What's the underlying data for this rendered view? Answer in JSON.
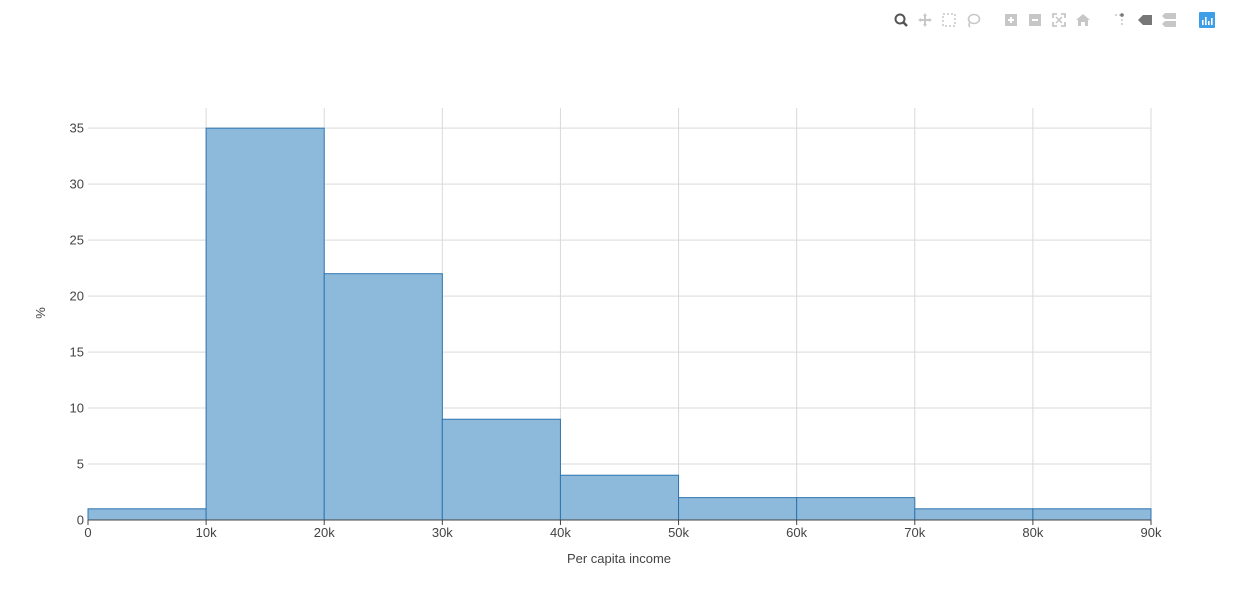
{
  "modebar": {
    "groups": [
      [
        "zoom-icon",
        "pan-icon",
        "box-select-icon",
        "lasso-select-icon"
      ],
      [
        "zoom-in-icon",
        "zoom-out-icon",
        "autoscale-icon",
        "reset-axes-icon"
      ],
      [
        "spike-lines-icon",
        "hover-closest-icon",
        "hover-compare-icon"
      ],
      [
        "plotly-logo-icon"
      ]
    ],
    "active": "zoom-icon",
    "logo_color": "#3f9ee8"
  },
  "chart_data": {
    "type": "histogram",
    "bins": [
      {
        "start": 0,
        "end": 10000,
        "value": 1
      },
      {
        "start": 10000,
        "end": 20000,
        "value": 35
      },
      {
        "start": 20000,
        "end": 30000,
        "value": 22
      },
      {
        "start": 30000,
        "end": 40000,
        "value": 9
      },
      {
        "start": 40000,
        "end": 50000,
        "value": 4
      },
      {
        "start": 50000,
        "end": 60000,
        "value": 2
      },
      {
        "start": 60000,
        "end": 70000,
        "value": 2
      },
      {
        "start": 70000,
        "end": 80000,
        "value": 1
      },
      {
        "start": 80000,
        "end": 90000,
        "value": 1
      }
    ],
    "xlabel": "Per capita income",
    "ylabel": "%",
    "xlim": [
      0,
      90000
    ],
    "ylim": [
      0,
      36.8
    ],
    "xticks": [
      0,
      10000,
      20000,
      30000,
      40000,
      50000,
      60000,
      70000,
      80000,
      90000
    ],
    "xtick_labels": [
      "0",
      "10k",
      "20k",
      "30k",
      "40k",
      "50k",
      "60k",
      "70k",
      "80k",
      "90k"
    ],
    "yticks": [
      0,
      5,
      10,
      15,
      20,
      25,
      30,
      35
    ],
    "ytick_labels": [
      "0",
      "5",
      "10",
      "15",
      "20",
      "25",
      "30",
      "35"
    ],
    "grid": true,
    "bar_fill": "#8db9db",
    "bar_stroke": "#2e75b0",
    "grid_color": "#d9d9d9"
  }
}
